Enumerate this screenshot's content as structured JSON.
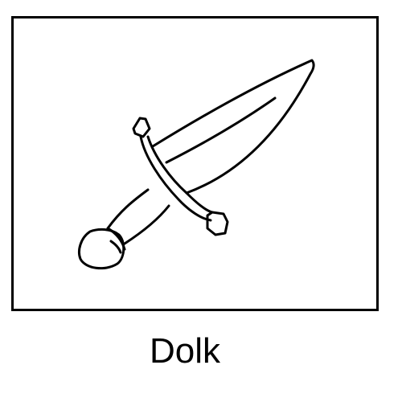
{
  "caption": "Dolk",
  "drawing": {
    "icon": "dagger-icon",
    "stroke_color": "#000000",
    "background_color": "#ffffff"
  }
}
